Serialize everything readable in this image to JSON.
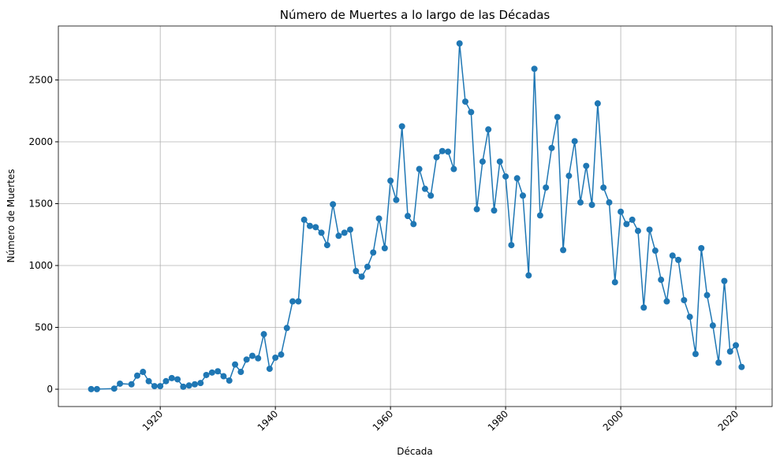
{
  "chart_data": {
    "type": "line",
    "title": "Número de Muertes a lo largo de las Décadas",
    "xlabel": "Década",
    "ylabel": "Número de Muertes",
    "x": [
      1908,
      1909,
      1912,
      1913,
      1915,
      1916,
      1917,
      1918,
      1919,
      1920,
      1921,
      1922,
      1923,
      1924,
      1925,
      1926,
      1927,
      1928,
      1929,
      1930,
      1931,
      1932,
      1933,
      1934,
      1935,
      1936,
      1937,
      1938,
      1939,
      1940,
      1941,
      1942,
      1943,
      1944,
      1945,
      1946,
      1947,
      1948,
      1949,
      1950,
      1951,
      1952,
      1953,
      1954,
      1955,
      1956,
      1957,
      1958,
      1959,
      1960,
      1961,
      1962,
      1963,
      1964,
      1965,
      1966,
      1967,
      1968,
      1969,
      1970,
      1971,
      1972,
      1973,
      1974,
      1975,
      1976,
      1977,
      1978,
      1979,
      1980,
      1981,
      1982,
      1983,
      1984,
      1985,
      1986,
      1987,
      1988,
      1989,
      1990,
      1991,
      1992,
      1993,
      1994,
      1995,
      1996,
      1997,
      1998,
      1999,
      2000,
      2001,
      2002,
      2003,
      2004,
      2005,
      2006,
      2007,
      2008,
      2009,
      2010,
      2011,
      2012,
      2013,
      2014,
      2015,
      2016,
      2017,
      2018,
      2019,
      2020,
      2021
    ],
    "series": [
      {
        "name": "Número de Muertes",
        "color": "#1f77b4",
        "values": [
          1,
          1,
          5,
          45,
          40,
          110,
          140,
          65,
          25,
          25,
          65,
          90,
          80,
          20,
          30,
          40,
          50,
          115,
          135,
          145,
          105,
          70,
          200,
          140,
          240,
          270,
          250,
          445,
          165,
          255,
          280,
          495,
          710,
          710,
          1370,
          1320,
          1310,
          1265,
          1165,
          1495,
          1240,
          1265,
          1290,
          955,
          910,
          990,
          1105,
          1380,
          1140,
          1685,
          1530,
          2125,
          1400,
          1335,
          1780,
          1620,
          1565,
          1875,
          1925,
          1920,
          1780,
          2795,
          2325,
          2240,
          1455,
          1840,
          2100,
          1445,
          1840,
          1720,
          1165,
          1705,
          1565,
          920,
          2590,
          1405,
          1630,
          1950,
          2200,
          1125,
          1725,
          2005,
          1510,
          1805,
          1490,
          2310,
          1630,
          1510,
          865,
          1435,
          1335,
          1370,
          1280,
          660,
          1290,
          1120,
          885,
          710,
          1080,
          1045,
          720,
          585,
          285,
          1140,
          760,
          515,
          215,
          875,
          305,
          355,
          180
        ]
      }
    ],
    "xlim": [
      1902.3,
      2026.3
    ],
    "xticks": [
      1920,
      1940,
      1960,
      1980,
      2000,
      2020
    ],
    "ylim": [
      -140,
      2936
    ],
    "yticks": [
      0,
      500,
      1000,
      1500,
      2000,
      2500
    ],
    "grid": true
  }
}
